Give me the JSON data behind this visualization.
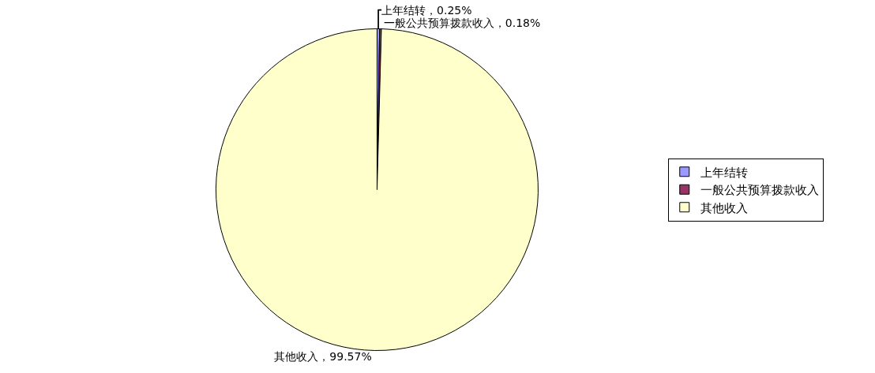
{
  "chart_data": {
    "type": "pie",
    "categories": [
      "上年结转",
      "一般公共预算拨款收入",
      "其他收入"
    ],
    "values": [
      0.25,
      0.18,
      99.57
    ],
    "colors": [
      "#9999ff",
      "#993366",
      "#ffffcc"
    ],
    "value_labels": [
      "上年结转，0.25%",
      "一般公共预算拨款收入，0.18%",
      "其他收入，99.57%"
    ],
    "legend": "right"
  }
}
